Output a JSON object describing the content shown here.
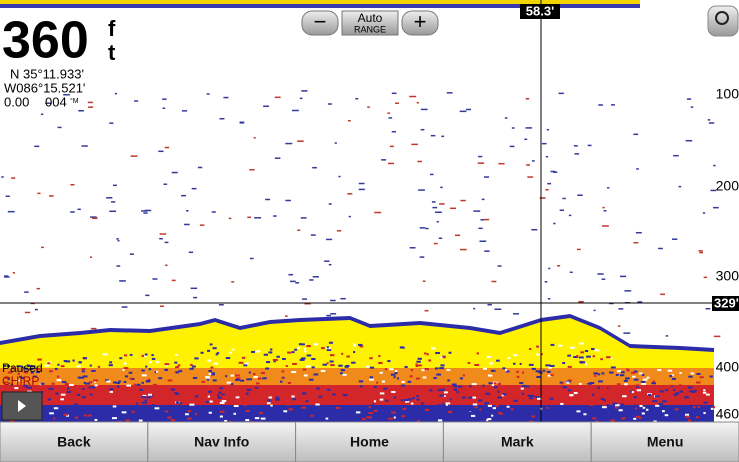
{
  "depth": {
    "value": "360",
    "unit_top": "f",
    "unit_bottom": "t"
  },
  "position": {
    "lat": "N  35°11.933'",
    "lon": "W086°15.521'"
  },
  "speed": "0.00",
  "heading": "004",
  "heading_unit": "°M",
  "range": {
    "minus": "−",
    "mode": "Auto",
    "label": "RANGE",
    "plus": "+"
  },
  "cursor": {
    "top_label": "58.3'",
    "depth_label": "329'"
  },
  "scale": [
    "100",
    "200",
    "300",
    "400",
    "460"
  ],
  "status": {
    "state": "Paused",
    "mode": "CHIRP"
  },
  "menu": [
    "Back",
    "Nav Info",
    "Home",
    "Mark",
    "Menu"
  ]
}
